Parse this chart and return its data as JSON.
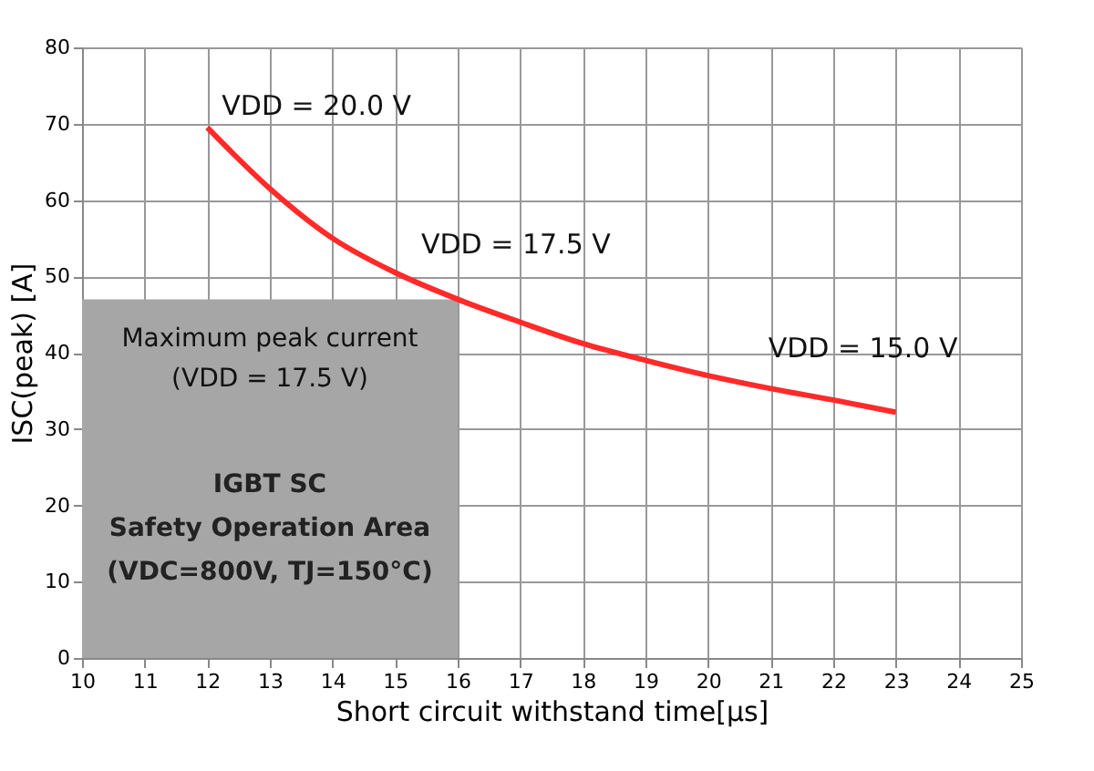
{
  "chart_data": {
    "type": "line",
    "xlabel": "Short circuit withstand time[µs]",
    "ylabel": "ISC(peak) [A]",
    "x": [
      12,
      13,
      14,
      15,
      16,
      17,
      18,
      19,
      20,
      21,
      22,
      23
    ],
    "series": [
      {
        "color": "#ff2a2a",
        "values": [
          69.5,
          61.5,
          55,
          50.5,
          47,
          44,
          41.2,
          39,
          37,
          35.3,
          33.8,
          32.2
        ]
      }
    ],
    "xlim": [
      10,
      25
    ],
    "xticks": [
      10,
      11,
      12,
      13,
      14,
      15,
      16,
      17,
      18,
      19,
      20,
      21,
      22,
      23,
      24,
      25
    ],
    "ylim": [
      0,
      80
    ],
    "yticks": [
      0,
      10,
      20,
      30,
      40,
      50,
      60,
      70,
      80
    ],
    "grid": true,
    "marker": "none",
    "line_style": "solid",
    "bands": [
      {
        "axis": "x",
        "from": 10,
        "to": 16,
        "color": "#a6a6a6",
        "label": "IGBT SC\nSafety Operation Area\n(VDC=800V, TJ=150°C)"
      }
    ],
    "annotations": [
      {
        "text": "VDD = 20.0 V",
        "x": 12,
        "y": 69.5
      },
      {
        "text": "VDD = 17.5 V",
        "x": 16,
        "y": 47
      },
      {
        "text": "VDD = 15.0 V",
        "x": 23,
        "y": 32.2
      },
      "Maximum peak current\n(VDD = 17.5 V)"
    ]
  }
}
